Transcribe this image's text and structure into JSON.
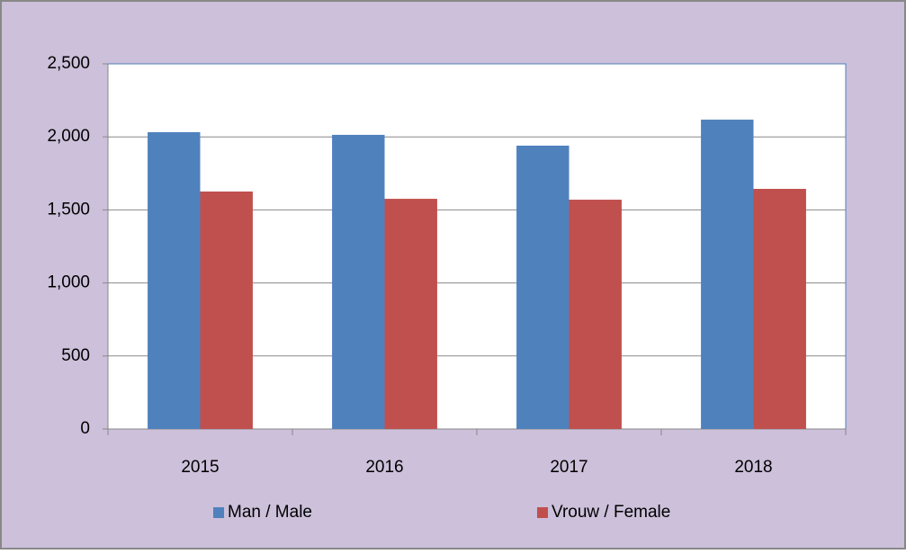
{
  "chart_data": {
    "type": "bar",
    "categories": [
      "2015",
      "2016",
      "2017",
      "2018"
    ],
    "series": [
      {
        "name": "Man / Male",
        "color": "#4f81bd",
        "values": [
          2032,
          2014,
          1940,
          2118
        ]
      },
      {
        "name": "Vrouw / Female",
        "color": "#c0504d",
        "values": [
          1626,
          1576,
          1570,
          1644
        ]
      }
    ],
    "ylim": [
      0,
      2500
    ],
    "yticks": [
      0,
      500,
      {
        "value": 1000,
        "label": "1,000"
      },
      {
        "value": 1500,
        "label": "1,500"
      },
      {
        "value": 2000,
        "label": "2,000"
      },
      {
        "value": 2500,
        "label": "2,500"
      }
    ],
    "grid": true,
    "legend": "bottom"
  }
}
